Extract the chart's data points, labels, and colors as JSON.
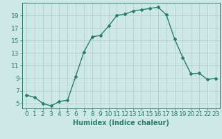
{
  "x": [
    0,
    1,
    2,
    3,
    4,
    5,
    6,
    7,
    8,
    9,
    10,
    11,
    12,
    13,
    14,
    15,
    16,
    17,
    18,
    19,
    20,
    21,
    22,
    23
  ],
  "y": [
    6.3,
    6.0,
    5.0,
    4.6,
    5.3,
    5.5,
    9.3,
    13.2,
    15.6,
    15.8,
    17.3,
    19.0,
    19.2,
    19.7,
    19.9,
    20.1,
    20.3,
    19.1,
    15.3,
    12.3,
    9.7,
    9.8,
    8.8,
    9.0
  ],
  "line_color": "#2a7d6e",
  "marker": "D",
  "markersize": 2,
  "linewidth": 1.0,
  "background_color": "#cde8e5",
  "grid_color": "#b0cfcc",
  "xlabel": "Humidex (Indice chaleur)",
  "yticks": [
    5,
    7,
    9,
    11,
    13,
    15,
    17,
    19
  ],
  "xticks": [
    0,
    1,
    2,
    3,
    4,
    5,
    6,
    7,
    8,
    9,
    10,
    11,
    12,
    13,
    14,
    15,
    16,
    17,
    18,
    19,
    20,
    21,
    22,
    23
  ],
  "ylim": [
    4.2,
    21.0
  ],
  "xlim": [
    -0.5,
    23.5
  ],
  "tick_color": "#2a7d6e",
  "label_color": "#2a7d6e",
  "font_size": 6.5
}
